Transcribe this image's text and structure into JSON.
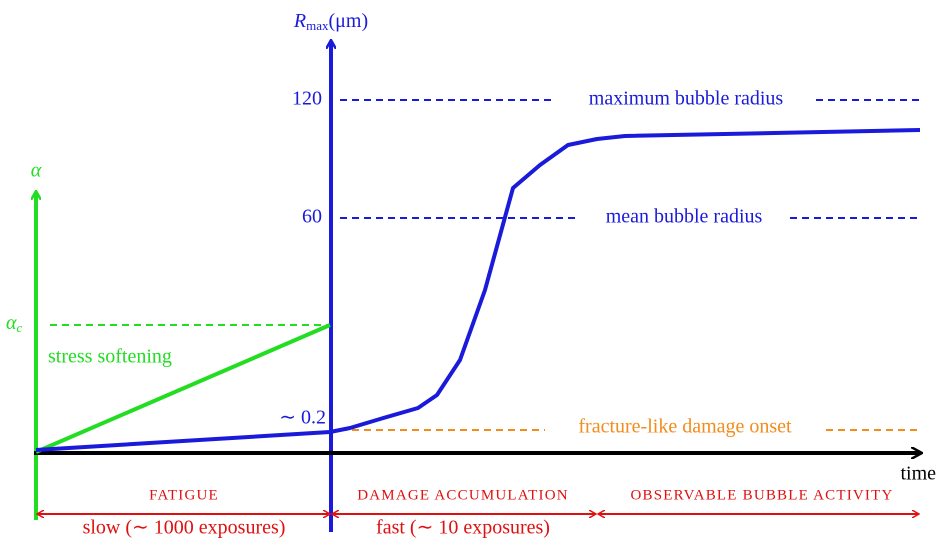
{
  "diagram": {
    "r_axis_label": {
      "symbol": "R",
      "subscript": "max",
      "unit": "(μm)"
    },
    "alpha_axis_label": "α",
    "r_ticks": [
      "120",
      "60",
      "∼ 0.2"
    ],
    "alpha_tick": {
      "symbol": "α",
      "subscript": "c"
    },
    "lines": [
      "maximum bubble radius",
      "mean bubble radius",
      "fracture-like damage onset"
    ],
    "green_label": "stress softening",
    "x_axis_label": "time",
    "phases": [
      {
        "name": "FATIGUE",
        "rate": "slow (∼ 1000 exposures)"
      },
      {
        "name": "DAMAGE ACCUMULATION",
        "rate": "fast (∼ 10 exposures)"
      },
      {
        "name": "OBSERVABLE BUBBLE ACTIVITY"
      }
    ]
  }
}
